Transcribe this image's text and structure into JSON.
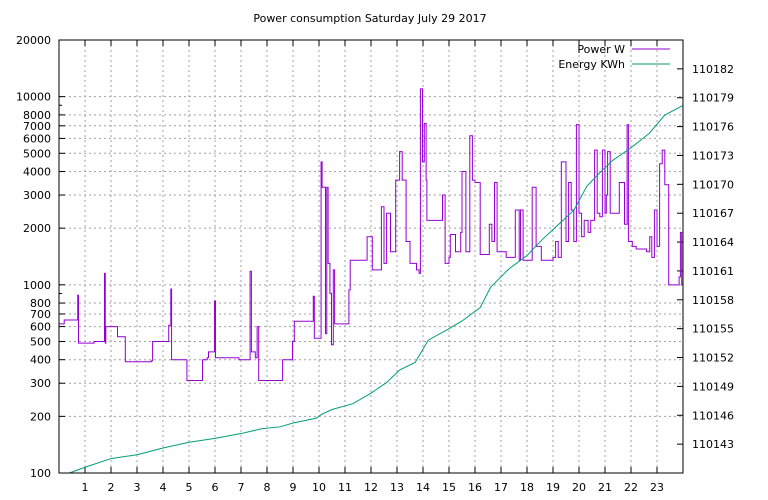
{
  "chart_data": {
    "type": "line",
    "title": "Power consumption Saturday July 29 2017",
    "x": {
      "min": 0,
      "max": 24,
      "ticks": [
        1,
        2,
        3,
        4,
        5,
        6,
        7,
        8,
        9,
        10,
        11,
        12,
        13,
        14,
        15,
        16,
        17,
        18,
        19,
        20,
        21,
        22,
        23
      ]
    },
    "y_left": {
      "scale": "log",
      "min": 100,
      "max": 20000,
      "ticks": [
        100,
        200,
        300,
        400,
        500,
        600,
        700,
        800,
        1000,
        2000,
        3000,
        4000,
        5000,
        6000,
        7000,
        8000,
        10000,
        20000
      ],
      "tick_labels": [
        "100",
        "200",
        "300",
        "400",
        "500",
        "600",
        "700",
        "800",
        "1000",
        "2000",
        "3000",
        "4000",
        "5000",
        "6000",
        "7000",
        "8000",
        "10000",
        "20000"
      ]
    },
    "y_right": {
      "scale": "linear",
      "min": 110140,
      "max": 110185,
      "ticks": [
        110143,
        110146,
        110149,
        110152,
        110155,
        110158,
        110161,
        110164,
        110167,
        110170,
        110173,
        110176,
        110179,
        110182
      ]
    },
    "grid": true,
    "legend_position": "top-right",
    "series": [
      {
        "name": "Power W",
        "axis": "left",
        "color": "#9400d3",
        "step": true,
        "points": [
          [
            0,
            620
          ],
          [
            0.2,
            650
          ],
          [
            0.6,
            650
          ],
          [
            0.72,
            880
          ],
          [
            0.75,
            490
          ],
          [
            1.3,
            490
          ],
          [
            1.35,
            500
          ],
          [
            1.72,
            500
          ],
          [
            1.75,
            1150
          ],
          [
            1.78,
            490
          ],
          [
            1.8,
            600
          ],
          [
            2.2,
            600
          ],
          [
            2.25,
            530
          ],
          [
            2.5,
            530
          ],
          [
            2.55,
            390
          ],
          [
            3.5,
            390
          ],
          [
            3.55,
            395
          ],
          [
            3.6,
            500
          ],
          [
            4.2,
            500
          ],
          [
            4.22,
            610
          ],
          [
            4.3,
            950
          ],
          [
            4.33,
            400
          ],
          [
            4.9,
            400
          ],
          [
            4.92,
            310
          ],
          [
            5.5,
            310
          ],
          [
            5.52,
            400
          ],
          [
            5.7,
            410
          ],
          [
            5.75,
            440
          ],
          [
            5.98,
            820
          ],
          [
            6.02,
            410
          ],
          [
            6.9,
            410
          ],
          [
            6.92,
            400
          ],
          [
            7.3,
            400
          ],
          [
            7.35,
            1180
          ],
          [
            7.4,
            440
          ],
          [
            7.55,
            410
          ],
          [
            7.62,
            600
          ],
          [
            7.68,
            310
          ],
          [
            8.55,
            310
          ],
          [
            8.6,
            400
          ],
          [
            8.98,
            500
          ],
          [
            9.05,
            640
          ],
          [
            9.75,
            640
          ],
          [
            9.78,
            870
          ],
          [
            9.82,
            520
          ],
          [
            10.05,
            520
          ],
          [
            10.08,
            4500
          ],
          [
            10.12,
            3300
          ],
          [
            10.2,
            3300
          ],
          [
            10.25,
            550
          ],
          [
            10.3,
            3300
          ],
          [
            10.35,
            1300
          ],
          [
            10.42,
            900
          ],
          [
            10.48,
            480
          ],
          [
            10.55,
            1200
          ],
          [
            10.6,
            620
          ],
          [
            11.1,
            620
          ],
          [
            11.15,
            940
          ],
          [
            11.2,
            1350
          ],
          [
            11.8,
            1350
          ],
          [
            11.85,
            1800
          ],
          [
            12.0,
            1800
          ],
          [
            12.05,
            1200
          ],
          [
            12.35,
            1200
          ],
          [
            12.4,
            2600
          ],
          [
            12.5,
            1300
          ],
          [
            12.6,
            2400
          ],
          [
            12.75,
            1500
          ],
          [
            12.95,
            3600
          ],
          [
            13.1,
            5100
          ],
          [
            13.2,
            3600
          ],
          [
            13.3,
            3600
          ],
          [
            13.35,
            1700
          ],
          [
            13.5,
            1300
          ],
          [
            13.75,
            1200
          ],
          [
            13.85,
            1150
          ],
          [
            13.9,
            11000
          ],
          [
            13.98,
            4500
          ],
          [
            14.05,
            7200
          ],
          [
            14.12,
            3600
          ],
          [
            14.15,
            2200
          ],
          [
            14.5,
            2200
          ],
          [
            14.65,
            2200
          ],
          [
            14.75,
            3000
          ],
          [
            14.85,
            1300
          ],
          [
            15.0,
            1400
          ],
          [
            15.05,
            1850
          ],
          [
            15.25,
            1500
          ],
          [
            15.35,
            1500
          ],
          [
            15.45,
            1900
          ],
          [
            15.5,
            4000
          ],
          [
            15.65,
            1500
          ],
          [
            15.8,
            6200
          ],
          [
            15.9,
            3600
          ],
          [
            16.0,
            3500
          ],
          [
            16.2,
            1450
          ],
          [
            16.4,
            1450
          ],
          [
            16.55,
            2100
          ],
          [
            16.65,
            1700
          ],
          [
            16.75,
            3500
          ],
          [
            16.85,
            1500
          ],
          [
            17.1,
            1500
          ],
          [
            17.2,
            1400
          ],
          [
            17.5,
            1400
          ],
          [
            17.55,
            2500
          ],
          [
            17.7,
            1350
          ],
          [
            17.75,
            2500
          ],
          [
            17.85,
            1350
          ],
          [
            18.1,
            1350
          ],
          [
            18.2,
            3300
          ],
          [
            18.35,
            1600
          ],
          [
            18.5,
            1600
          ],
          [
            18.55,
            1350
          ],
          [
            18.95,
            1350
          ],
          [
            19.0,
            1400
          ],
          [
            19.1,
            1700
          ],
          [
            19.2,
            1400
          ],
          [
            19.3,
            1400
          ],
          [
            19.32,
            4500
          ],
          [
            19.5,
            1700
          ],
          [
            19.6,
            3500
          ],
          [
            19.7,
            2500
          ],
          [
            19.8,
            1700
          ],
          [
            19.9,
            7100
          ],
          [
            20.0,
            2400
          ],
          [
            20.1,
            1800
          ],
          [
            20.2,
            2200
          ],
          [
            20.35,
            1900
          ],
          [
            20.45,
            2200
          ],
          [
            20.55,
            2200
          ],
          [
            20.6,
            5200
          ],
          [
            20.7,
            2400
          ],
          [
            20.8,
            2300
          ],
          [
            20.9,
            5200
          ],
          [
            21.0,
            2400
          ],
          [
            21.05,
            3000
          ],
          [
            21.1,
            5100
          ],
          [
            21.2,
            2400
          ],
          [
            21.5,
            2400
          ],
          [
            21.55,
            3500
          ],
          [
            21.75,
            2100
          ],
          [
            21.85,
            7100
          ],
          [
            21.9,
            1700
          ],
          [
            22.05,
            1600
          ],
          [
            22.2,
            1550
          ],
          [
            22.5,
            1550
          ],
          [
            22.6,
            1500
          ],
          [
            22.72,
            1800
          ],
          [
            22.8,
            1400
          ],
          [
            22.9,
            2500
          ],
          [
            23.0,
            1600
          ],
          [
            23.1,
            4400
          ],
          [
            23.2,
            5200
          ],
          [
            23.3,
            3400
          ],
          [
            23.4,
            3400
          ],
          [
            23.45,
            1000
          ],
          [
            23.8,
            1000
          ],
          [
            23.85,
            1100
          ],
          [
            23.9,
            1900
          ],
          [
            23.95,
            1000
          ],
          [
            24.0,
            1000
          ]
        ]
      },
      {
        "name": "Energy KWh",
        "axis": "right",
        "color": "#009e73",
        "step": false,
        "points": [
          [
            0.4,
            110140
          ],
          [
            1.0,
            110140.6
          ],
          [
            2.0,
            110141.5
          ],
          [
            3.0,
            110141.9
          ],
          [
            4.0,
            110142.6
          ],
          [
            5.0,
            110143.2
          ],
          [
            6.0,
            110143.6
          ],
          [
            7.0,
            110144.1
          ],
          [
            7.8,
            110144.6
          ],
          [
            8.5,
            110144.8
          ],
          [
            9.0,
            110145.2
          ],
          [
            9.9,
            110145.7
          ],
          [
            10.1,
            110146.1
          ],
          [
            10.5,
            110146.6
          ],
          [
            11.3,
            110147.2
          ],
          [
            12.0,
            110148.3
          ],
          [
            12.6,
            110149.4
          ],
          [
            13.1,
            110150.7
          ],
          [
            13.7,
            110151.5
          ],
          [
            14.2,
            110153.8
          ],
          [
            15.0,
            110155.0
          ],
          [
            15.5,
            110155.8
          ],
          [
            16.2,
            110157.2
          ],
          [
            16.6,
            110159.3
          ],
          [
            17.3,
            110161.2
          ],
          [
            18.0,
            110162.6
          ],
          [
            18.6,
            110164.3
          ],
          [
            19.2,
            110165.8
          ],
          [
            19.8,
            110167.3
          ],
          [
            20.3,
            110169.8
          ],
          [
            20.8,
            110171.2
          ],
          [
            21.3,
            110172.5
          ],
          [
            22.0,
            110173.8
          ],
          [
            22.7,
            110175.3
          ],
          [
            23.3,
            110177.2
          ],
          [
            24.0,
            110178.2
          ]
        ]
      }
    ]
  }
}
